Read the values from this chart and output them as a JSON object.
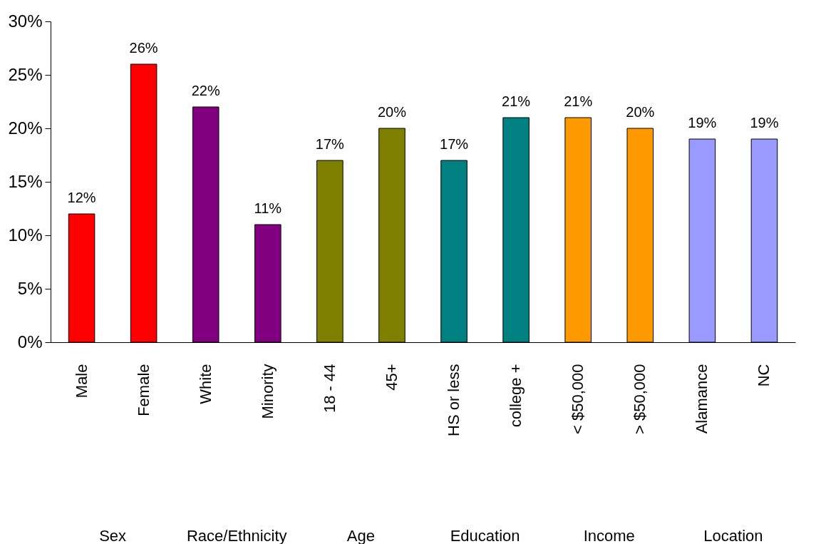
{
  "chart_data": {
    "type": "bar",
    "categories": [
      "Male",
      "Female",
      "White",
      "Minority",
      "18 - 44",
      "45+",
      "HS or less",
      "college +",
      "< $50,000",
      "> $50,000",
      "Alamance",
      "NC"
    ],
    "values": [
      12,
      26,
      22,
      11,
      17,
      20,
      17,
      21,
      21,
      20,
      19,
      19
    ],
    "colors": [
      "#ff0000",
      "#ff0000",
      "#800080",
      "#800080",
      "#808000",
      "#808000",
      "#008080",
      "#008080",
      "#ff9900",
      "#ff9900",
      "#9999ff",
      "#9999ff"
    ],
    "value_labels": [
      "12%",
      "26%",
      "22%",
      "11%",
      "17%",
      "20%",
      "17%",
      "21%",
      "21%",
      "20%",
      "19%",
      "19%"
    ],
    "ylim": [
      0,
      30
    ],
    "yticks": [
      {
        "value": 0,
        "label": "0%"
      },
      {
        "value": 5,
        "label": "5%"
      },
      {
        "value": 10,
        "label": "10%"
      },
      {
        "value": 15,
        "label": "15%"
      },
      {
        "value": 20,
        "label": "20%"
      },
      {
        "value": 25,
        "label": "25%"
      },
      {
        "value": 30,
        "label": "30%"
      }
    ],
    "annotations": [
      "Sex",
      "Race/Ethnicity",
      "Age",
      "Education",
      "Income",
      "Location"
    ]
  }
}
